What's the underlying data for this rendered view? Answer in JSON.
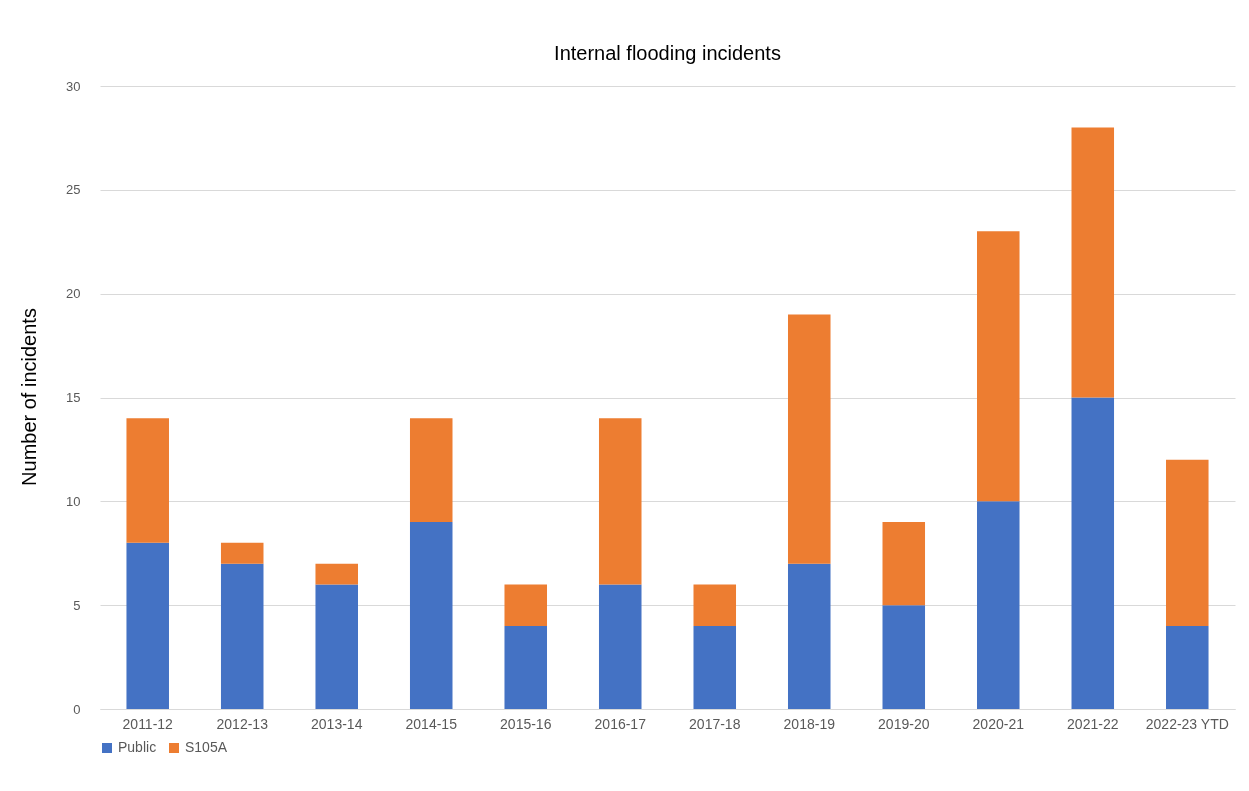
{
  "chart_data": {
    "type": "bar",
    "title": "Internal flooding incidents",
    "ylabel": "Number of incidents",
    "categories": [
      "2011-12",
      "2012-13",
      "2013-14",
      "2014-15",
      "2015-16",
      "2016-17",
      "2017-18",
      "2018-19",
      "2019-20",
      "2020-21",
      "2021-22",
      "2022-23 YTD"
    ],
    "series": [
      {
        "name": "Public",
        "color": "#4472c4",
        "values": [
          8,
          7,
          6,
          9,
          4,
          6,
          4,
          7,
          5,
          10,
          15,
          4
        ]
      },
      {
        "name": "S105A",
        "color": "#ed7d31",
        "values": [
          6,
          1,
          1,
          5,
          2,
          8,
          2,
          12,
          4,
          13,
          13,
          8
        ]
      }
    ],
    "stacked": true,
    "ylim": [
      0,
      30
    ],
    "yticks": [
      0,
      5,
      10,
      15,
      20,
      25,
      30
    ],
    "grid": "y",
    "legend": "bottom"
  }
}
